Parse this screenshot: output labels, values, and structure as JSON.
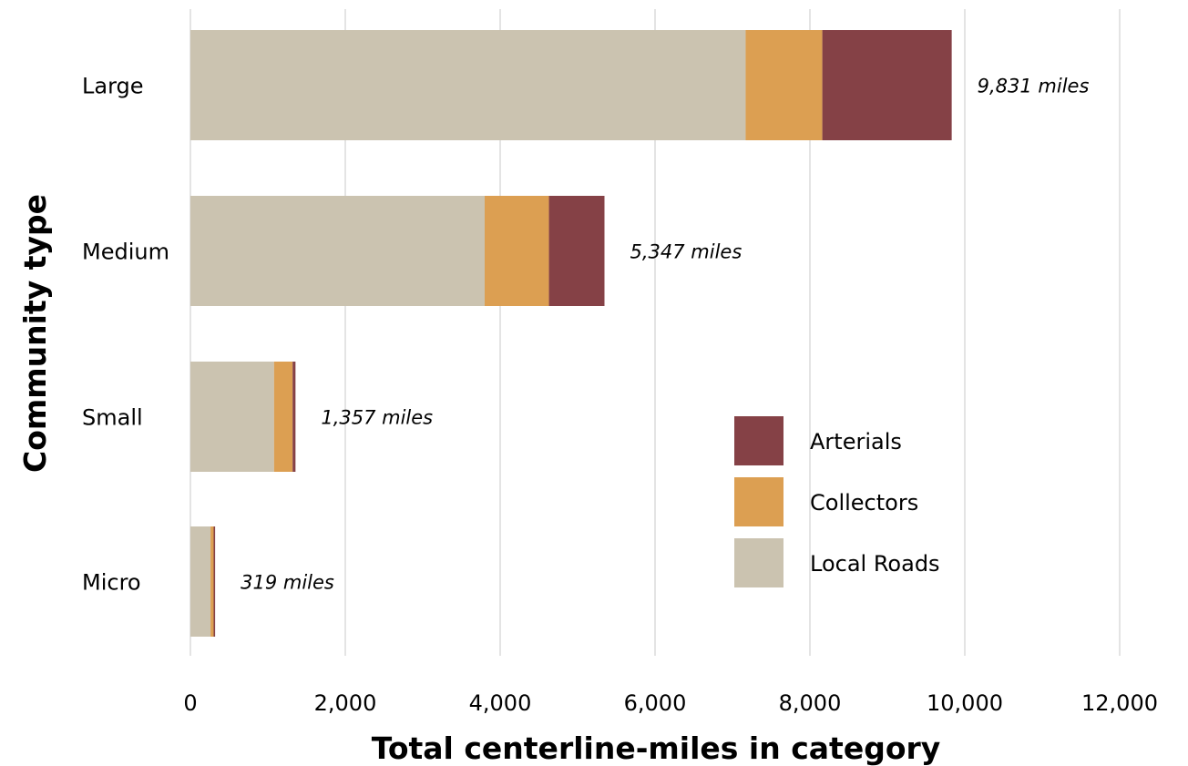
{
  "chart_data": {
    "type": "bar",
    "orientation": "horizontal",
    "stacked": true,
    "categories": [
      "Large",
      "Medium",
      "Small",
      "Micro"
    ],
    "series": [
      {
        "name": "Local Roads",
        "color": "#cbc3b0",
        "values": [
          7170,
          3800,
          1080,
          260
        ]
      },
      {
        "name": "Collectors",
        "color": "#dc9f52",
        "values": [
          990,
          830,
          240,
          40
        ]
      },
      {
        "name": "Arterials",
        "color": "#854146",
        "values": [
          1671,
          717,
          37,
          19
        ]
      }
    ],
    "totals": [
      9831,
      5347,
      1357,
      319
    ],
    "total_labels": [
      "9,831 miles",
      "5,347 miles",
      "1,357 miles",
      "319 miles"
    ],
    "xlabel": "Total centerline-miles in category",
    "ylabel": "Community type",
    "xlim": [
      0,
      12000
    ],
    "xticks": [
      0,
      2000,
      4000,
      6000,
      8000,
      10000,
      12000
    ],
    "xtick_labels": [
      "0",
      "2,000",
      "4,000",
      "6,000",
      "8,000",
      "10,000",
      "12,000"
    ],
    "legend_order": [
      "Arterials",
      "Collectors",
      "Local Roads"
    ],
    "legend_position": "inside lower-right",
    "grid": "vertical gridlines on x ticks"
  }
}
